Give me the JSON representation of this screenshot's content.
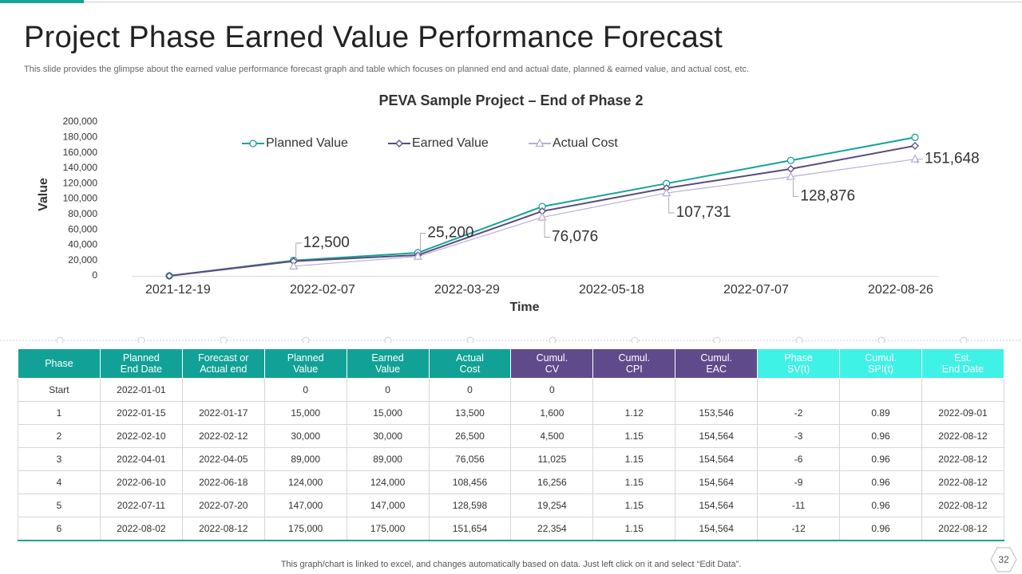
{
  "title": "Project Phase Earned Value Performance Forecast",
  "subtitle": "This slide provides the glimpse about the earned value performance forecast graph and table which focuses on planned end and actual date, planned & earned value, and actual cost, etc.",
  "chart_data": {
    "type": "line",
    "title": "PEVA Sample Project – End of Phase 2",
    "x_label": "Time",
    "y_label": "Value",
    "x": [
      "2021-12-16",
      "2022-01-28",
      "2022-03-12",
      "2022-04-24",
      "2022-06-06",
      "2022-07-19",
      "2022-08-31"
    ],
    "xlim": [
      "2021-12-03",
      "2022-09-08"
    ],
    "xticks": [
      "2021-12-19",
      "2022-02-07",
      "2022-03-29",
      "2022-05-18",
      "2022-07-07",
      "2022-08-26"
    ],
    "ylim": [
      0,
      200000
    ],
    "yticks": [
      0,
      {
        "value": 20000,
        "label": "20,000"
      },
      {
        "value": 40000,
        "label": "40,000"
      },
      {
        "value": 60000,
        "label": "60,000"
      },
      {
        "value": 80000,
        "label": "80,000"
      },
      {
        "value": 100000,
        "label": "100,000"
      },
      {
        "value": 120000,
        "label": "120,000"
      },
      {
        "value": 140000,
        "label": "140,000"
      },
      {
        "value": 160000,
        "label": "160,000"
      },
      {
        "value": 180000,
        "label": "180,000"
      },
      {
        "value": 200000,
        "label": "200,000"
      }
    ],
    "grid": false,
    "legend": "top",
    "series": [
      {
        "name": "Planned Value",
        "color": "#17a398",
        "marker": "circle",
        "values": [
          0,
          20000,
          30000,
          90000,
          120000,
          150000,
          180000
        ]
      },
      {
        "name": "Earned Value",
        "color": "#5b4a7e",
        "marker": "diamond",
        "values": [
          0,
          19000,
          27000,
          84000,
          114000,
          139000,
          169000
        ]
      },
      {
        "name": "Actual Cost",
        "color": "#b9aed8",
        "marker": "triangle",
        "values": [
          null,
          12500,
          25200,
          76076,
          107731,
          128876,
          151648
        ],
        "value_labels": [
          null,
          "12,500",
          "25,200",
          "76,076",
          "107,731",
          "128,876",
          "151,648"
        ]
      }
    ]
  },
  "table": {
    "header": [
      [
        "Phase"
      ],
      [
        "Planned",
        "End Date"
      ],
      [
        "Forecast or",
        "Actual end"
      ],
      [
        "Planned",
        "Value"
      ],
      [
        "Earned",
        "Value"
      ],
      [
        "Actual",
        "Cost"
      ],
      [
        "Cumul.",
        "CV"
      ],
      [
        "Cumul.",
        "CPI"
      ],
      [
        "Cumul.",
        "EAC"
      ],
      [
        "Phase",
        "SV(t)"
      ],
      [
        "Cumul.",
        "SPI(t)"
      ],
      [
        "Est.",
        "End Date"
      ]
    ],
    "rows": [
      [
        "Start",
        "2022-01-01",
        null,
        "0",
        "0",
        "0",
        "0",
        null,
        null,
        null,
        null,
        null
      ],
      [
        "1",
        "2022-01-15",
        "2022-01-17",
        "15,000",
        "15,000",
        "13,500",
        "1,600",
        "1.12",
        "153,546",
        "-2",
        "0.89",
        "2022-09-01"
      ],
      [
        "2",
        "2022-02-10",
        "2022-02-12",
        "30,000",
        "30,000",
        "26,500",
        "4,500",
        "1.15",
        "154,564",
        "-3",
        "0.96",
        "2022-08-12"
      ],
      [
        "3",
        "2022-04-01",
        "2022-04-05",
        "89,000",
        "89,000",
        "76,056",
        "11,025",
        "1.15",
        "154,564",
        "-6",
        "0.96",
        "2022-08-12"
      ],
      [
        "4",
        "2022-06-10",
        "2022-06-18",
        "124,000",
        "124,000",
        "108,456",
        "16,256",
        "1.15",
        "154,564",
        "-9",
        "0.96",
        "2022-08-12"
      ],
      [
        "5",
        "2022-07-11",
        "2022-07-20",
        "147,000",
        "147,000",
        "128,598",
        "19,254",
        "1.15",
        "154,564",
        "-11",
        "0.96",
        "2022-08-12"
      ],
      [
        "6",
        "2022-08-02",
        "2022-08-12",
        "175,000",
        "175,000",
        "151,654",
        "22,354",
        "1.15",
        "154,564",
        "-12",
        "0.96",
        "2022-08-12"
      ]
    ]
  },
  "footer": "This graph/chart is linked to excel,  and changes automatically based on data. Just left click on it and select “Edit Data”.",
  "page_number": "32"
}
